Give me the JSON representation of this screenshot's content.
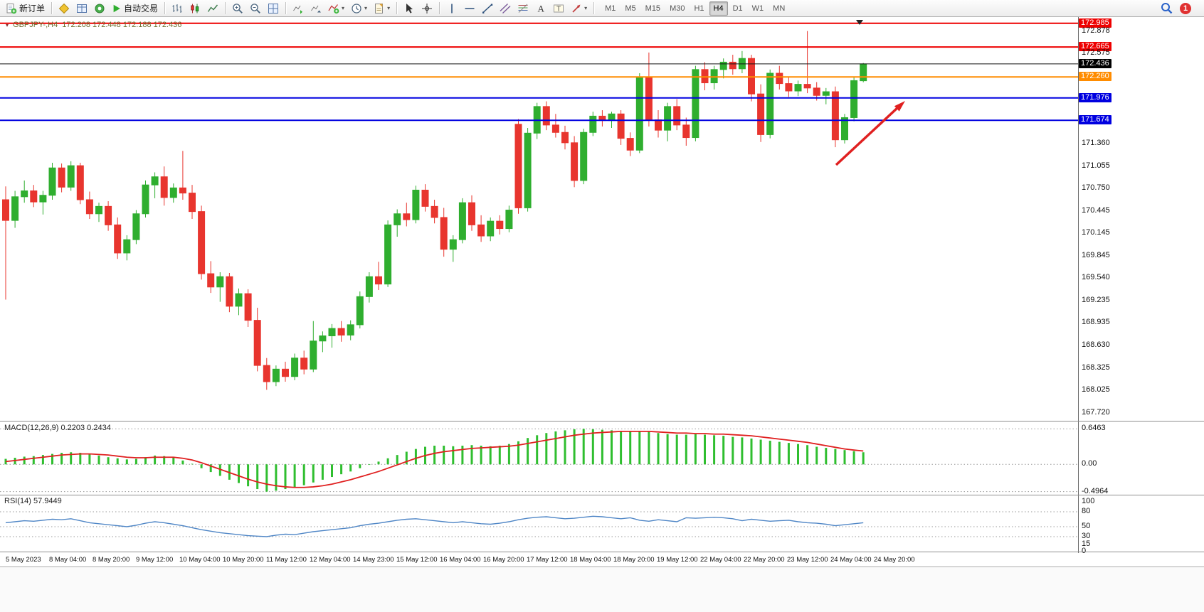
{
  "toolbar": {
    "new_order_label": "新订单",
    "autotrading_label": "自动交易",
    "timeframes": [
      {
        "label": "M1",
        "active": false
      },
      {
        "label": "M5",
        "active": false
      },
      {
        "label": "M15",
        "active": false
      },
      {
        "label": "M30",
        "active": false
      },
      {
        "label": "H1",
        "active": false
      },
      {
        "label": "H4",
        "active": true
      },
      {
        "label": "D1",
        "active": false
      },
      {
        "label": "W1",
        "active": false
      },
      {
        "label": "MN",
        "active": false
      }
    ],
    "notification_count": "1"
  },
  "chart_data": {
    "type": "candlestick",
    "symbol": "GBPJPY-",
    "timeframe": "H4",
    "header": {
      "symbol_period": "GBPJPY-,H4",
      "ohlc": "172.208 172.448 172.188 172.436"
    },
    "ohlc_current": {
      "open": 172.208,
      "high": 172.448,
      "low": 172.188,
      "close": 172.436
    },
    "y_axis": {
      "min": 167.65,
      "max": 173.05,
      "labels": [
        {
          "label": "172.985",
          "price": 172.985,
          "tag": "red"
        },
        {
          "label": "172.878",
          "price": 172.878
        },
        {
          "label": "172.665",
          "price": 172.665,
          "tag": "red"
        },
        {
          "label": "172.575",
          "price": 172.575
        },
        {
          "label": "172.436",
          "price": 172.436,
          "tag": "black"
        },
        {
          "label": "172.260",
          "price": 172.26,
          "tag": "orange"
        },
        {
          "label": "171.976",
          "price": 171.976,
          "tag": "blue"
        },
        {
          "label": "171.674",
          "price": 171.674,
          "tag": "blue"
        },
        {
          "label": "171.360",
          "price": 171.36
        },
        {
          "label": "171.055",
          "price": 171.055
        },
        {
          "label": "170.750",
          "price": 170.75
        },
        {
          "label": "170.445",
          "price": 170.445
        },
        {
          "label": "170.145",
          "price": 170.145
        },
        {
          "label": "169.845",
          "price": 169.845
        },
        {
          "label": "169.540",
          "price": 169.54
        },
        {
          "label": "169.235",
          "price": 169.235
        },
        {
          "label": "168.935",
          "price": 168.935
        },
        {
          "label": "168.630",
          "price": 168.63
        },
        {
          "label": "168.325",
          "price": 168.325
        },
        {
          "label": "168.025",
          "price": 168.025
        },
        {
          "label": "167.720",
          "price": 167.72
        }
      ]
    },
    "x_axis": {
      "labels": [
        "5 May 2023",
        "8 May 04:00",
        "8 May 20:00",
        "9 May 12:00",
        "10 May 04:00",
        "10 May 20:00",
        "11 May 12:00",
        "12 May 04:00",
        "14 May 23:00",
        "15 May 12:00",
        "16 May 04:00",
        "16 May 20:00",
        "17 May 12:00",
        "18 May 04:00",
        "18 May 20:00",
        "19 May 12:00",
        "22 May 04:00",
        "22 May 20:00",
        "23 May 12:00",
        "24 May 04:00",
        "24 May 20:00"
      ]
    },
    "hlines": [
      {
        "price": 172.985,
        "color": "#ee0000",
        "width": 2
      },
      {
        "price": 172.665,
        "color": "#ee0000",
        "width": 2
      },
      {
        "price": 172.436,
        "color": "#111111",
        "width": 1
      },
      {
        "price": 172.26,
        "color": "#ff8c00",
        "width": 2
      },
      {
        "price": 171.976,
        "color": "#0000e0",
        "width": 2
      },
      {
        "price": 171.674,
        "color": "#0000e0",
        "width": 2
      }
    ],
    "candles": [
      [
        170.6,
        170.78,
        169.25,
        170.32
      ],
      [
        170.32,
        170.72,
        170.22,
        170.64
      ],
      [
        170.64,
        170.86,
        170.56,
        170.72
      ],
      [
        170.72,
        170.8,
        170.5,
        170.57
      ],
      [
        170.57,
        170.72,
        170.4,
        170.66
      ],
      [
        170.66,
        171.1,
        170.6,
        171.03
      ],
      [
        171.03,
        171.09,
        170.7,
        170.77
      ],
      [
        170.77,
        171.12,
        170.72,
        171.06
      ],
      [
        171.06,
        171.1,
        170.54,
        170.6
      ],
      [
        170.6,
        170.71,
        170.34,
        170.41
      ],
      [
        170.41,
        170.56,
        170.3,
        170.51
      ],
      [
        170.51,
        170.58,
        170.18,
        170.26
      ],
      [
        170.26,
        170.36,
        169.8,
        169.88
      ],
      [
        169.88,
        170.12,
        169.78,
        170.06
      ],
      [
        170.06,
        170.46,
        170.0,
        170.41
      ],
      [
        170.41,
        170.86,
        170.36,
        170.8
      ],
      [
        170.8,
        170.97,
        170.62,
        170.91
      ],
      [
        170.91,
        171.05,
        170.52,
        170.63
      ],
      [
        170.63,
        170.82,
        170.56,
        170.76
      ],
      [
        170.76,
        171.26,
        170.6,
        170.69
      ],
      [
        170.69,
        170.8,
        170.34,
        170.44
      ],
      [
        170.44,
        170.52,
        169.52,
        169.6
      ],
      [
        169.6,
        169.77,
        169.34,
        169.42
      ],
      [
        169.42,
        169.62,
        169.22,
        169.56
      ],
      [
        169.56,
        169.61,
        169.08,
        169.16
      ],
      [
        169.16,
        169.4,
        169.04,
        169.33
      ],
      [
        169.33,
        169.39,
        168.88,
        168.97
      ],
      [
        168.97,
        169.14,
        168.28,
        168.36
      ],
      [
        168.36,
        168.46,
        168.03,
        168.14
      ],
      [
        168.14,
        168.36,
        168.08,
        168.31
      ],
      [
        168.31,
        168.41,
        168.14,
        168.21
      ],
      [
        168.21,
        168.52,
        168.16,
        168.46
      ],
      [
        168.46,
        168.56,
        168.24,
        168.31
      ],
      [
        168.31,
        168.96,
        168.27,
        168.69
      ],
      [
        168.69,
        168.82,
        168.54,
        168.76
      ],
      [
        168.76,
        168.92,
        168.6,
        168.86
      ],
      [
        168.86,
        168.96,
        168.68,
        168.77
      ],
      [
        168.77,
        168.97,
        168.7,
        168.91
      ],
      [
        168.91,
        169.36,
        168.86,
        169.29
      ],
      [
        169.29,
        169.62,
        169.21,
        169.56
      ],
      [
        169.56,
        169.76,
        169.38,
        169.46
      ],
      [
        169.46,
        170.32,
        169.42,
        170.26
      ],
      [
        170.26,
        170.47,
        170.1,
        170.41
      ],
      [
        170.41,
        170.56,
        170.24,
        170.33
      ],
      [
        170.33,
        170.79,
        170.28,
        170.73
      ],
      [
        170.73,
        170.81,
        170.44,
        170.51
      ],
      [
        170.51,
        170.6,
        170.28,
        170.36
      ],
      [
        170.36,
        170.49,
        169.83,
        169.93
      ],
      [
        169.93,
        170.12,
        169.76,
        170.06
      ],
      [
        170.06,
        170.62,
        170.01,
        170.56
      ],
      [
        170.56,
        170.66,
        170.18,
        170.26
      ],
      [
        170.26,
        170.39,
        170.03,
        170.11
      ],
      [
        170.11,
        170.36,
        170.04,
        170.31
      ],
      [
        170.31,
        170.39,
        170.13,
        170.21
      ],
      [
        170.21,
        170.52,
        170.16,
        170.46
      ],
      [
        171.62,
        171.69,
        170.41,
        170.49
      ],
      [
        170.49,
        171.57,
        170.44,
        171.5
      ],
      [
        171.5,
        171.91,
        171.42,
        171.86
      ],
      [
        171.86,
        171.93,
        171.54,
        171.61
      ],
      [
        171.61,
        171.76,
        171.44,
        171.51
      ],
      [
        171.51,
        171.6,
        171.28,
        171.37
      ],
      [
        171.37,
        171.46,
        170.77,
        170.86
      ],
      [
        170.86,
        171.56,
        170.81,
        171.51
      ],
      [
        171.51,
        171.79,
        171.46,
        171.73
      ],
      [
        171.73,
        171.81,
        171.59,
        171.67
      ],
      [
        171.67,
        171.79,
        171.57,
        171.76
      ],
      [
        171.76,
        171.81,
        171.34,
        171.43
      ],
      [
        171.43,
        171.51,
        171.19,
        171.27
      ],
      [
        171.27,
        172.31,
        171.23,
        172.26
      ],
      [
        172.26,
        172.59,
        171.59,
        171.68
      ],
      [
        171.68,
        171.81,
        171.44,
        171.54
      ],
      [
        171.54,
        171.91,
        171.39,
        171.86
      ],
      [
        171.86,
        171.96,
        171.54,
        171.61
      ],
      [
        171.61,
        171.71,
        171.33,
        171.44
      ],
      [
        171.44,
        172.41,
        171.39,
        172.36
      ],
      [
        172.36,
        172.46,
        172.08,
        172.18
      ],
      [
        172.18,
        172.41,
        172.09,
        172.36
      ],
      [
        172.36,
        172.51,
        172.24,
        172.46
      ],
      [
        172.46,
        172.56,
        172.29,
        172.37
      ],
      [
        172.37,
        172.61,
        172.31,
        172.51
      ],
      [
        172.51,
        172.56,
        171.93,
        172.03
      ],
      [
        172.03,
        172.16,
        171.38,
        171.48
      ],
      [
        171.48,
        172.36,
        171.43,
        172.31
      ],
      [
        172.31,
        172.41,
        172.09,
        172.17
      ],
      [
        172.17,
        172.26,
        171.99,
        172.07
      ],
      [
        172.07,
        172.21,
        172.0,
        172.16
      ],
      [
        172.16,
        172.88,
        172.04,
        172.11
      ],
      [
        172.11,
        172.19,
        171.94,
        172.01
      ],
      [
        172.01,
        172.11,
        171.89,
        172.06
      ],
      [
        172.06,
        172.13,
        171.31,
        171.41
      ],
      [
        171.41,
        171.76,
        171.36,
        171.71
      ],
      [
        171.71,
        172.26,
        171.66,
        172.21
      ],
      [
        172.208,
        172.448,
        172.188,
        172.436
      ]
    ],
    "indicators": {
      "macd": {
        "name": "MACD(12,26,9)",
        "text": "MACD(12,26,9) 0.2203 0.2434",
        "macd_value": 0.2203,
        "signal_value": 0.2434,
        "scale_labels": [
          "0.6463",
          "0.00",
          "-0.4964"
        ],
        "scale_values": [
          0.6463,
          0,
          -0.4964
        ],
        "range": [
          -0.54,
          0.78
        ],
        "histogram": [
          0.1,
          0.12,
          0.14,
          0.15,
          0.17,
          0.19,
          0.21,
          0.22,
          0.21,
          0.19,
          0.16,
          0.13,
          0.11,
          0.09,
          0.1,
          0.13,
          0.16,
          0.15,
          0.12,
          0.07,
          0.01,
          -0.07,
          -0.14,
          -0.21,
          -0.28,
          -0.34,
          -0.4,
          -0.45,
          -0.4964,
          -0.48,
          -0.45,
          -0.42,
          -0.38,
          -0.33,
          -0.28,
          -0.23,
          -0.18,
          -0.13,
          -0.07,
          -0.01,
          0.05,
          0.11,
          0.17,
          0.23,
          0.28,
          0.32,
          0.34,
          0.34,
          0.33,
          0.34,
          0.35,
          0.34,
          0.33,
          0.34,
          0.37,
          0.42,
          0.48,
          0.53,
          0.57,
          0.6,
          0.62,
          0.64,
          0.6463,
          0.64,
          0.63,
          0.62,
          0.61,
          0.6,
          0.6,
          0.59,
          0.57,
          0.55,
          0.54,
          0.54,
          0.55,
          0.54,
          0.53,
          0.52,
          0.5,
          0.49,
          0.47,
          0.45,
          0.43,
          0.41,
          0.39,
          0.37,
          0.35,
          0.32,
          0.3,
          0.28,
          0.26,
          0.24,
          0.2203
        ],
        "signal": [
          0.05,
          0.07,
          0.09,
          0.11,
          0.13,
          0.15,
          0.17,
          0.18,
          0.19,
          0.19,
          0.18,
          0.17,
          0.15,
          0.13,
          0.12,
          0.12,
          0.13,
          0.13,
          0.13,
          0.11,
          0.08,
          0.03,
          -0.03,
          -0.09,
          -0.15,
          -0.21,
          -0.27,
          -0.32,
          -0.36,
          -0.39,
          -0.41,
          -0.42,
          -0.42,
          -0.41,
          -0.39,
          -0.36,
          -0.32,
          -0.28,
          -0.23,
          -0.18,
          -0.13,
          -0.07,
          -0.01,
          0.05,
          0.11,
          0.16,
          0.2,
          0.23,
          0.25,
          0.27,
          0.29,
          0.3,
          0.31,
          0.32,
          0.33,
          0.35,
          0.38,
          0.41,
          0.44,
          0.47,
          0.5,
          0.53,
          0.55,
          0.57,
          0.58,
          0.59,
          0.6,
          0.6,
          0.6,
          0.6,
          0.59,
          0.58,
          0.57,
          0.57,
          0.56,
          0.56,
          0.55,
          0.55,
          0.54,
          0.53,
          0.52,
          0.5,
          0.48,
          0.46,
          0.44,
          0.42,
          0.4,
          0.37,
          0.34,
          0.31,
          0.28,
          0.26,
          0.2434
        ]
      },
      "rsi": {
        "name": "RSI(14)",
        "text": "RSI(14) 57.9449",
        "value": 57.9449,
        "scale_labels": [
          "100",
          "80",
          "50",
          "30",
          "15",
          "0"
        ],
        "scale_values": [
          100,
          80,
          50,
          30,
          15,
          0
        ],
        "levels": [
          80,
          50,
          30
        ],
        "range": [
          0,
          100
        ],
        "values": [
          58,
          60,
          62,
          61,
          63,
          65,
          64,
          66,
          62,
          58,
          56,
          54,
          52,
          50,
          53,
          57,
          60,
          58,
          55,
          52,
          48,
          44,
          41,
          38,
          36,
          34,
          32,
          31,
          30,
          33,
          35,
          34,
          37,
          40,
          42,
          44,
          46,
          48,
          52,
          55,
          57,
          60,
          63,
          65,
          66,
          64,
          62,
          60,
          58,
          60,
          58,
          56,
          55,
          57,
          60,
          64,
          67,
          69,
          70,
          68,
          66,
          67,
          69,
          71,
          70,
          68,
          66,
          68,
          63,
          61,
          64,
          62,
          60,
          68,
          67,
          68,
          69,
          68,
          66,
          62,
          65,
          63,
          61,
          62,
          63,
          60,
          58,
          57,
          55,
          52,
          54,
          56,
          57.9449
        ]
      }
    },
    "annotations": {
      "trend_arrow": {
        "shape": "arrow",
        "direction": "up-right",
        "color": "#e02020"
      }
    },
    "colors": {
      "bull": "#2fae2f",
      "bear": "#e8352e",
      "macd_hist": "#2fbe2f",
      "macd_signal": "#e02020",
      "rsi_line": "#4f86c6"
    }
  }
}
